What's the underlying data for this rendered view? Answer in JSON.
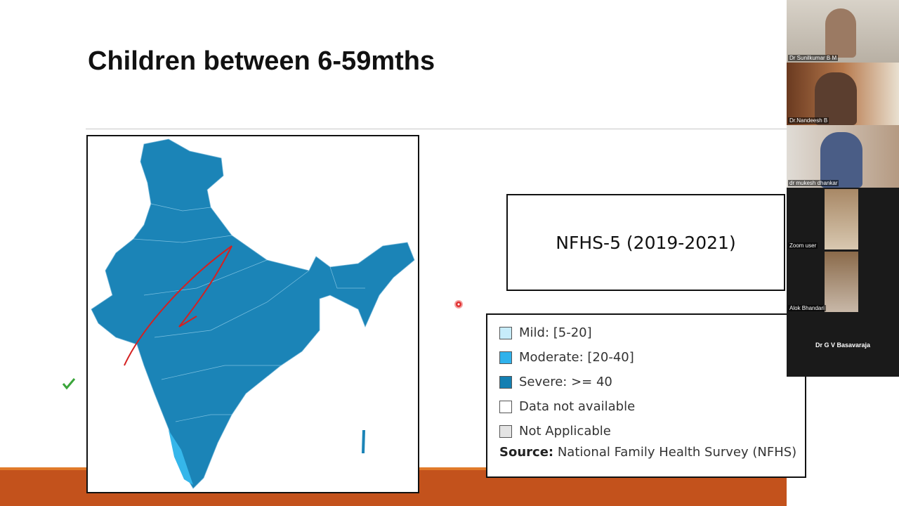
{
  "slide": {
    "title": "Children between 6-59mths",
    "survey": "NFHS-5 (2019-2021)",
    "legend": [
      "Mild: [5-20]",
      "Moderate: [20-40]",
      "Severe: >= 40",
      "Data not available",
      "Not Applicable"
    ],
    "source": {
      "label": "Source:",
      "text": "National Family Health Survey (NFHS)"
    }
  },
  "participants": [
    "Dr Sunilkumar B M",
    "Dr.Nandeesh B",
    "dr mukesh dhankar",
    "Zoom user",
    "Alok Bhandari",
    "Dr G V Basavaraja"
  ]
}
